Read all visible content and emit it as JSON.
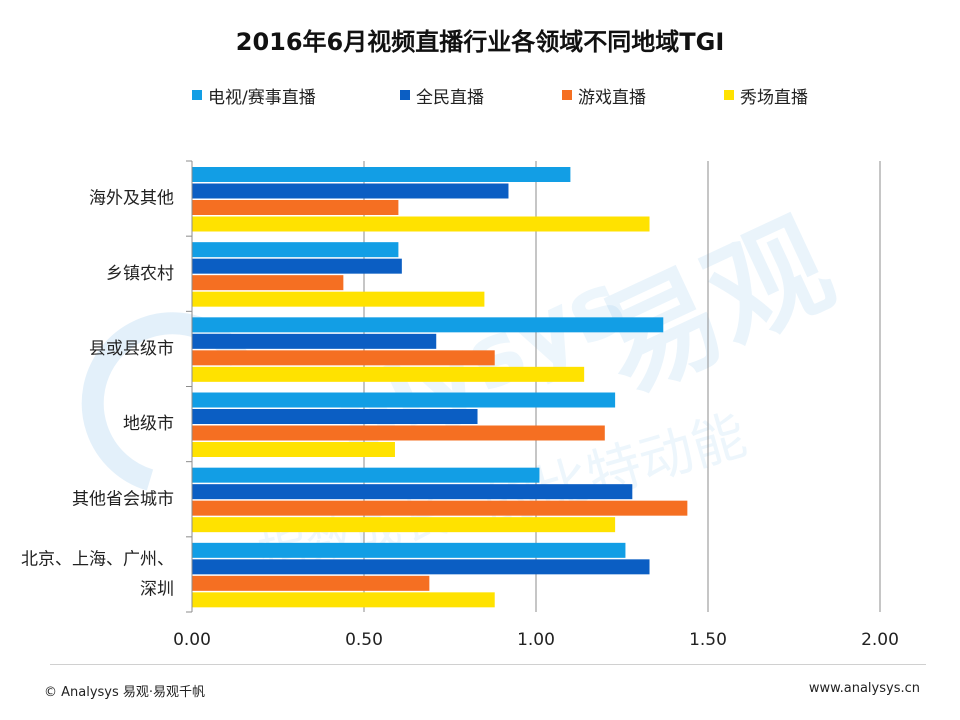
{
  "chart_data": {
    "type": "bar",
    "orientation": "horizontal",
    "title": "2016年6月视频直播行业各领域不同地域TGI",
    "categories": [
      "海外及其他",
      "乡镇农村",
      "县或县级市",
      "地级市",
      "其他省会城市",
      "北京、上海、广州、深圳"
    ],
    "category_lines": [
      [
        "海外及其他"
      ],
      [
        "乡镇农村"
      ],
      [
        "县或县级市"
      ],
      [
        "地级市"
      ],
      [
        "其他省会城市"
      ],
      [
        "北京、上海、广州、",
        "深圳"
      ]
    ],
    "series": [
      {
        "name": "电视/赛事直播",
        "color": "#129ee5",
        "values": [
          1.1,
          0.6,
          1.37,
          1.23,
          1.01,
          1.26
        ]
      },
      {
        "name": "全民直播",
        "color": "#0b5ec3",
        "values": [
          0.92,
          0.61,
          0.71,
          0.83,
          1.28,
          1.33
        ]
      },
      {
        "name": "游戏直播",
        "color": "#f56f22",
        "values": [
          0.6,
          0.44,
          0.88,
          1.2,
          1.44,
          0.69
        ]
      },
      {
        "name": "秀场直播",
        "color": "#ffe200",
        "values": [
          1.33,
          0.85,
          1.14,
          0.59,
          1.23,
          0.88
        ]
      }
    ],
    "xlim": [
      0,
      2
    ],
    "xticks": [
      "0.00",
      "0.50",
      "1.00",
      "1.50",
      "2.00"
    ],
    "xtick_values": [
      0,
      0.5,
      1,
      1.5,
      2
    ],
    "xlabel": "",
    "ylabel": "",
    "grid": true,
    "legend": "top"
  },
  "watermark": {
    "text_big": "易观",
    "text_latin": "alysys",
    "text_row1": "的比特动能",
    "text_row2": "指数成长"
  },
  "footer": {
    "left": "© Analysys 易观·易观千帆",
    "right": "www.analysys.cn"
  }
}
